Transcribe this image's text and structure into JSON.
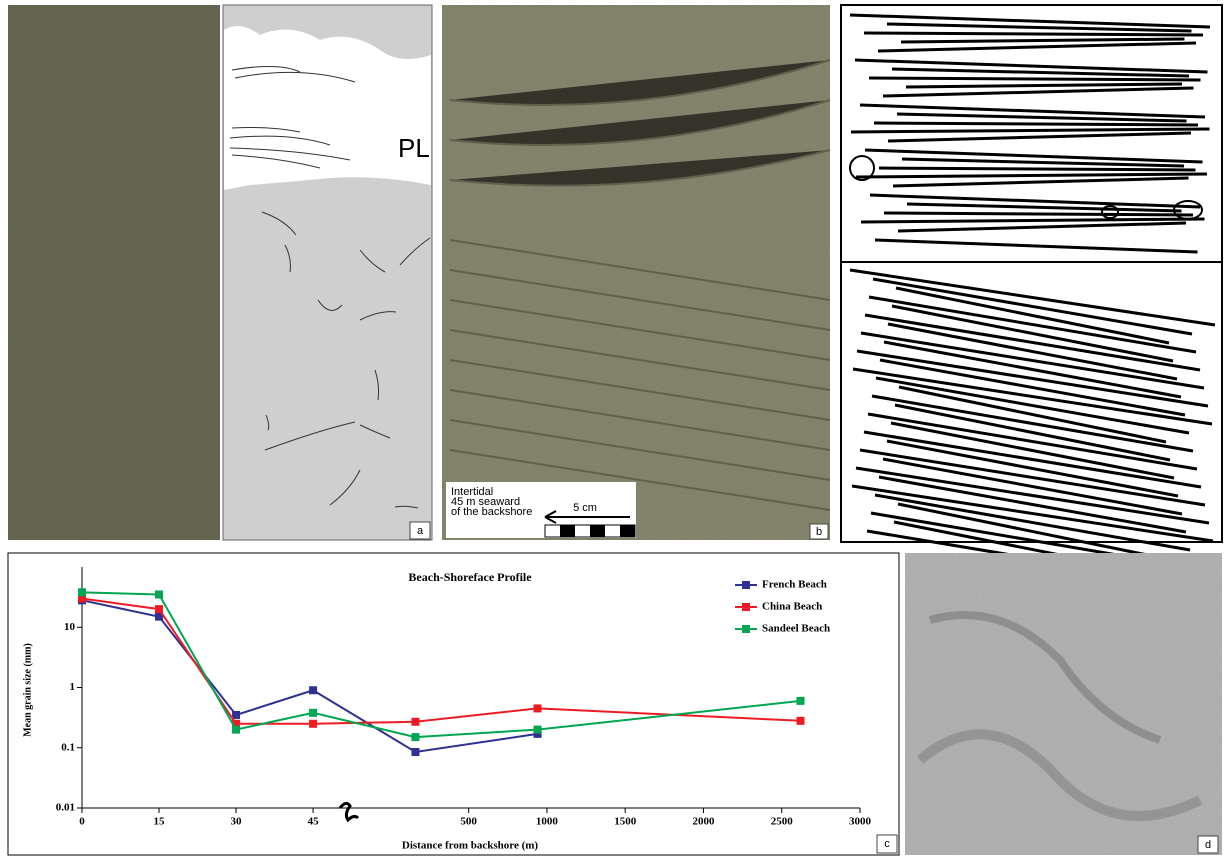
{
  "panels": {
    "a": {
      "label": "a",
      "annotation": "PL"
    },
    "b": {
      "label": "b",
      "scale_text": "5 cm",
      "location_text": [
        "Intertidal",
        "45 m seaward",
        "of the backshore"
      ]
    },
    "c": {
      "label": "c"
    },
    "d": {
      "label": "d"
    }
  },
  "chart_data": {
    "type": "line",
    "title": "Beach-Shoreface Profile",
    "x_label": "Distance from backshore (m)",
    "y_label": "Mean grain size (mm)",
    "x": [
      0,
      15,
      30,
      45,
      160,
      940,
      2620
    ],
    "series": [
      {
        "name": "French Beach",
        "color": "#2e3192",
        "values": [
          28,
          15,
          0.35,
          0.9,
          0.085,
          0.17,
          null
        ]
      },
      {
        "name": "China Beach",
        "color": "#ed1c24",
        "values": [
          30,
          20,
          0.25,
          0.25,
          0.27,
          0.45,
          0.28
        ]
      },
      {
        "name": "Sandeel Beach",
        "color": "#00a651",
        "values": [
          38,
          35,
          0.2,
          0.38,
          0.15,
          0.2,
          0.6
        ]
      }
    ],
    "xlim": [
      0,
      3000
    ],
    "xticks": [
      0,
      15,
      30,
      45,
      500,
      1000,
      1500,
      2000,
      2500,
      3000
    ],
    "x_axis_break": true,
    "ylim": [
      0.01,
      100
    ],
    "yticks": [
      0.01,
      0.1,
      1,
      10
    ],
    "y_log": true,
    "legend": "upper right"
  }
}
